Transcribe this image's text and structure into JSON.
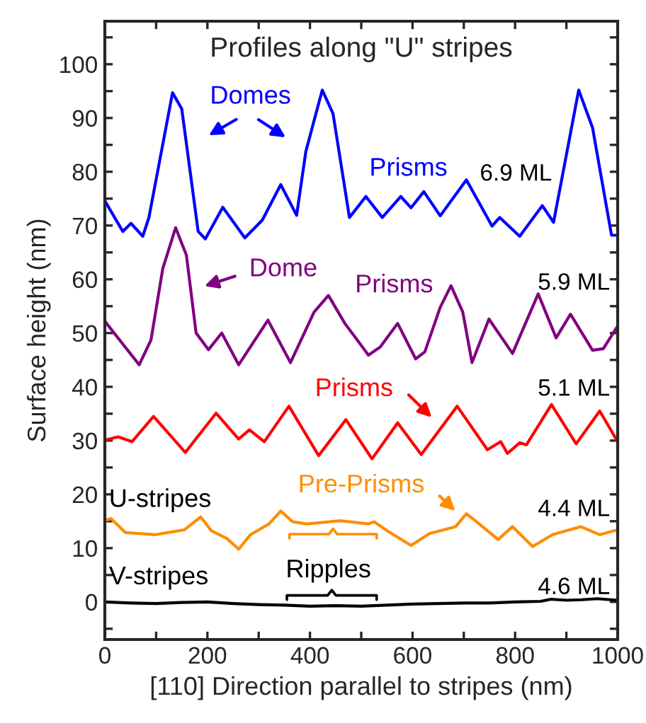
{
  "chart_data": {
    "type": "line",
    "title": "Profiles along \"U\" stripes",
    "xlabel": "[110] Direction parallel to stripes (nm)",
    "ylabel": "Surface height (nm)",
    "xlim": [
      0,
      1000
    ],
    "ylim": [
      -7,
      108
    ],
    "xticks": [
      0,
      {
        "value": 100,
        "label": null
      },
      200,
      {
        "value": 300,
        "label": null
      },
      400,
      {
        "value": 500,
        "label": null
      },
      600,
      {
        "value": 700,
        "label": null
      },
      800,
      {
        "value": 900,
        "label": null
      },
      1000
    ],
    "yticks": [
      {
        "value": -5,
        "label": null
      },
      0,
      {
        "value": 5,
        "label": null
      },
      10,
      {
        "value": 15,
        "label": null
      },
      20,
      {
        "value": 25,
        "label": null
      },
      30,
      {
        "value": 35,
        "label": null
      },
      40,
      {
        "value": 45,
        "label": null
      },
      50,
      {
        "value": 55,
        "label": null
      },
      60,
      {
        "value": 65,
        "label": null
      },
      70,
      {
        "value": 75,
        "label": null
      },
      80,
      {
        "value": 85,
        "label": null
      },
      90,
      {
        "value": 95,
        "label": null
      },
      100,
      {
        "value": 105,
        "label": null
      }
    ],
    "grid": false,
    "legend": false,
    "marker": "none",
    "line_style": "solid",
    "series": [
      {
        "name": "6.9 ML",
        "color": "#0000ff",
        "x": [
          0,
          35,
          51,
          74,
          86,
          132,
          150,
          182,
          196,
          230,
          273,
          307,
          343,
          374,
          392,
          424,
          445,
          477,
          509,
          541,
          577,
          597,
          622,
          654,
          705,
          755,
          770,
          809,
          853,
          875,
          924,
          951,
          988,
          1000
        ],
        "values": [
          74.6,
          68.9,
          70.4,
          68.0,
          71.5,
          94.7,
          91.7,
          68.9,
          67.5,
          73.4,
          67.7,
          71,
          77.6,
          71.9,
          83.8,
          95.2,
          90.8,
          71.5,
          75.4,
          71.5,
          75.4,
          73.3,
          76.3,
          71.8,
          78.5,
          69.9,
          71.5,
          68,
          73.7,
          70.6,
          95.2,
          88.2,
          68.2,
          68.2
        ]
      },
      {
        "name": "5.9 ML",
        "color": "#800080",
        "x": [
          0,
          67,
          90,
          113,
          138,
          159,
          178,
          202,
          228,
          261,
          318,
          362,
          408,
          436,
          468,
          514,
          537,
          571,
          606,
          624,
          654,
          675,
          698,
          716,
          749,
          795,
          845,
          880,
          908,
          951,
          972,
          1000
        ],
        "values": [
          52.2,
          44.1,
          48.7,
          62,
          69.6,
          64.5,
          50,
          46.9,
          50,
          44.1,
          52.4,
          44.5,
          53.9,
          57,
          51.8,
          45.9,
          47.4,
          51.8,
          45.2,
          46.5,
          54.8,
          58.8,
          53.9,
          44.5,
          52.6,
          46.2,
          57.3,
          49.1,
          53.5,
          46.8,
          47.1,
          51.3
        ]
      },
      {
        "name": "5.1 ML",
        "color": "#ff0000",
        "x": [
          0,
          26,
          53,
          95,
          157,
          217,
          261,
          282,
          311,
          359,
          417,
          470,
          521,
          571,
          617,
          687,
          746,
          772,
          785,
          809,
          822,
          871,
          919,
          965,
          1000
        ],
        "values": [
          30.1,
          30.7,
          29.8,
          34.5,
          27.8,
          35.1,
          30.3,
          32,
          29.8,
          36.4,
          27.2,
          33.9,
          26.6,
          33.3,
          27.4,
          36.4,
          28.3,
          29.8,
          27.6,
          29.6,
          29.2,
          36.7,
          29.4,
          35.5,
          29.8
        ]
      },
      {
        "name": "4.4 ML",
        "color": "#ff8c00",
        "x": [
          0,
          12,
          40,
          99,
          155,
          187,
          208,
          238,
          261,
          284,
          320,
          343,
          366,
          394,
          459,
          514,
          525,
          551,
          597,
          633,
          684,
          705,
          725,
          767,
          795,
          834,
          873,
          928,
          965,
          1000
        ],
        "values": [
          15.1,
          15.5,
          12.9,
          12.5,
          13.4,
          15.8,
          13.2,
          11.8,
          9.8,
          12.5,
          14.5,
          16.9,
          14.9,
          14.5,
          15.1,
          14.5,
          14.9,
          13.2,
          10.5,
          12.7,
          14,
          16.4,
          14.9,
          11.6,
          14,
          10.3,
          12.5,
          14,
          12.5,
          13.4
        ]
      },
      {
        "name": "4.6 ML",
        "color": "#000000",
        "x": [
          0,
          50,
          100,
          150,
          200,
          250,
          300,
          350,
          400,
          450,
          500,
          550,
          600,
          650,
          700,
          750,
          800,
          850,
          870,
          900,
          930,
          960,
          1000
        ],
        "values": [
          0,
          -0.2,
          -0.3,
          -0.1,
          0,
          -0.3,
          -0.5,
          -0.6,
          -0.8,
          -0.7,
          -0.8,
          -0.6,
          -0.4,
          -0.3,
          -0.2,
          -0.2,
          0,
          0.1,
          0.5,
          0.3,
          0.4,
          0.6,
          0.3
        ]
      }
    ],
    "annotations": [
      "Domes",
      "Prisms",
      "Dome",
      "Prisms",
      "Prisms",
      "U-stripes",
      "Pre-Prisms",
      "V-stripes",
      "Ripples"
    ]
  }
}
